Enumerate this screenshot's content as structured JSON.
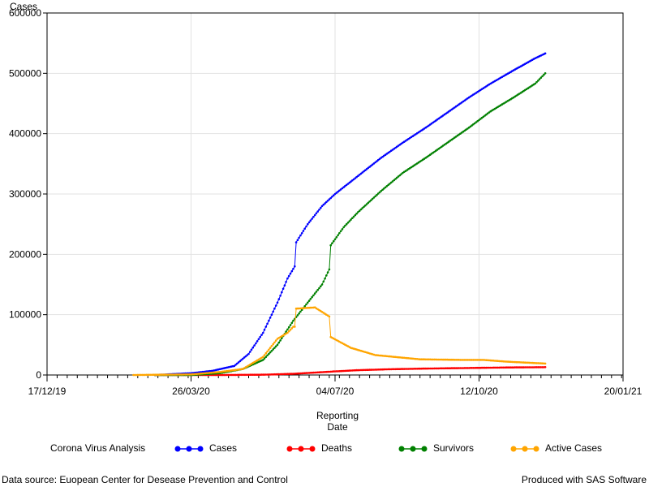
{
  "chart_data": {
    "type": "line",
    "title": "",
    "xlabel": "Reporting Date",
    "xlabel_lines": [
      "Reporting",
      "Date"
    ],
    "ylabel": "Cases",
    "ylim": [
      0,
      600000
    ],
    "y_ticks": [
      "0",
      "100000",
      "200000",
      "300000",
      "400000",
      "500000",
      "600000"
    ],
    "x_ticks": [
      {
        "date": "2019-12-17",
        "label": "17/12/19"
      },
      {
        "date": "2020-03-26",
        "label": "26/03/20"
      },
      {
        "date": "2020-07-04",
        "label": "04/07/20"
      },
      {
        "date": "2020-10-12",
        "label": "12/10/20"
      },
      {
        "date": "2021-01-20",
        "label": "20/01/21"
      }
    ],
    "xlim": [
      "2019-12-17",
      "2021-01-20"
    ],
    "grid": true,
    "legend_position": "bottom",
    "series": [
      {
        "name": "Cases",
        "color": "#0000ff",
        "x": [
          "2020-03-01",
          "2020-03-26",
          "2020-04-10",
          "2020-04-25",
          "2020-05-05",
          "2020-05-15",
          "2020-05-25",
          "2020-06-01",
          "2020-06-06",
          "2020-06-07",
          "2020-06-15",
          "2020-06-25",
          "2020-07-04",
          "2020-07-20",
          "2020-08-05",
          "2020-08-20",
          "2020-09-05",
          "2020-09-20",
          "2020-10-05",
          "2020-10-20",
          "2020-11-05",
          "2020-11-20",
          "2020-11-27"
        ],
        "values": [
          0,
          3000,
          7000,
          15000,
          35000,
          70000,
          120000,
          160000,
          180000,
          220000,
          250000,
          280000,
          300000,
          330000,
          360000,
          385000,
          410000,
          435000,
          460000,
          483000,
          505000,
          525000,
          533000
        ]
      },
      {
        "name": "Deaths",
        "color": "#ff0000",
        "x": [
          "2020-03-01",
          "2020-04-15",
          "2020-05-15",
          "2020-06-05",
          "2020-06-20",
          "2020-07-04",
          "2020-07-20",
          "2020-08-10",
          "2020-09-01",
          "2020-10-01",
          "2020-11-01",
          "2020-11-27"
        ],
        "values": [
          0,
          0,
          500,
          2000,
          4000,
          6000,
          8000,
          9500,
          10500,
          11500,
          12500,
          13000
        ]
      },
      {
        "name": "Survivors",
        "color": "#008000",
        "x": [
          "2020-03-01",
          "2020-03-26",
          "2020-04-15",
          "2020-05-01",
          "2020-05-15",
          "2020-05-25",
          "2020-06-05",
          "2020-06-15",
          "2020-06-25",
          "2020-06-30",
          "2020-07-01",
          "2020-07-10",
          "2020-07-20",
          "2020-08-05",
          "2020-08-20",
          "2020-09-05",
          "2020-09-20",
          "2020-10-05",
          "2020-10-20",
          "2020-11-05",
          "2020-11-20",
          "2020-11-27"
        ],
        "values": [
          0,
          0,
          3000,
          10000,
          25000,
          50000,
          90000,
          120000,
          150000,
          175000,
          215000,
          245000,
          270000,
          305000,
          335000,
          360000,
          385000,
          410000,
          437000,
          460000,
          483000,
          500000
        ]
      },
      {
        "name": "Active Cases",
        "color": "#ffa500",
        "x": [
          "2020-02-15",
          "2020-03-26",
          "2020-04-15",
          "2020-05-01",
          "2020-05-15",
          "2020-05-25",
          "2020-06-01",
          "2020-06-05",
          "2020-06-06",
          "2020-06-07",
          "2020-06-20",
          "2020-06-30",
          "2020-07-01",
          "2020-07-15",
          "2020-08-01",
          "2020-09-01",
          "2020-10-01",
          "2020-10-15",
          "2020-11-01",
          "2020-11-27"
        ],
        "values": [
          0,
          1000,
          5000,
          10000,
          30000,
          60000,
          70000,
          80000,
          80000,
          110000,
          112000,
          97000,
          63000,
          45000,
          33000,
          26000,
          25000,
          25000,
          22000,
          19000
        ]
      }
    ]
  },
  "footnotes": {
    "source": "Data source: Euopean Center for Desease Prevention and Control",
    "software": "Produced with SAS Software"
  },
  "legend_title": "Corona Virus Analysis"
}
